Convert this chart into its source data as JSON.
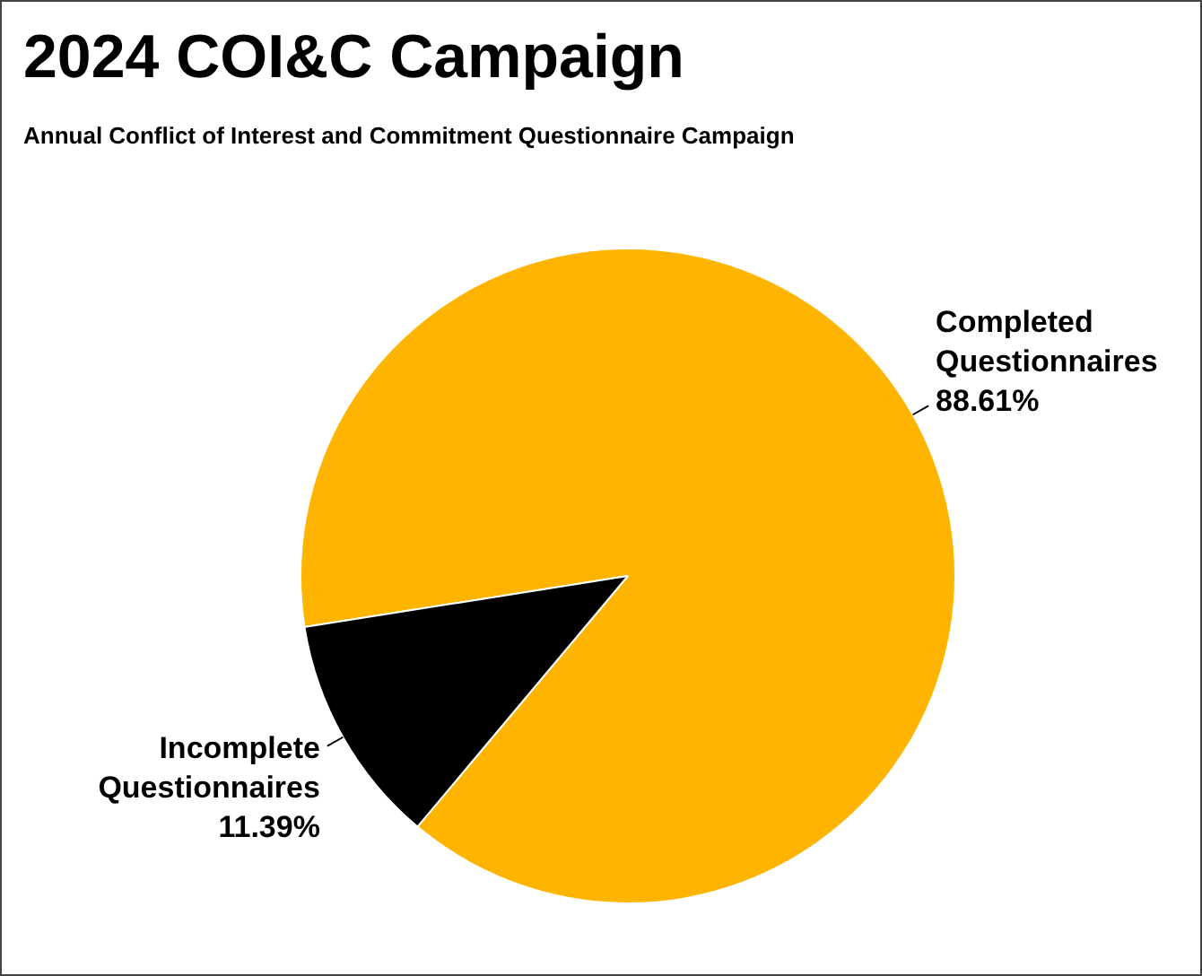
{
  "chart_data": {
    "type": "pie",
    "title": "2024 COI&C Campaign",
    "subtitle": "Annual Conflict of Interest and Commitment Questionnaire Campaign",
    "categories": [
      "Completed Questionnaires",
      "Incomplete Questionnaires"
    ],
    "values": [
      88.61,
      11.39
    ],
    "colors": [
      "#ffb400",
      "#000000"
    ],
    "value_labels": [
      "88.61%",
      "11.39%"
    ],
    "legend": false
  }
}
